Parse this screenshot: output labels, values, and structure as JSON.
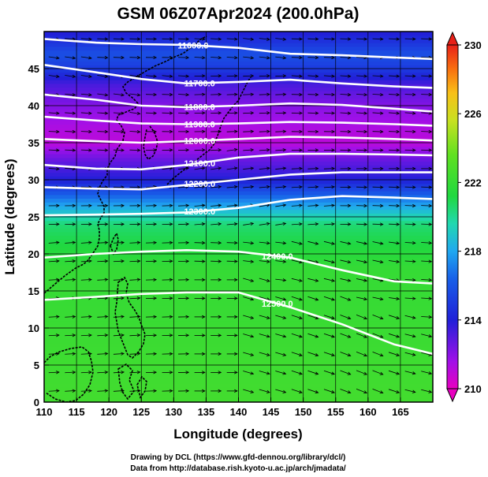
{
  "chart_data": {
    "type": "heatmap",
    "title": "GSM 06Z07Apr2024 (200.0hPa)",
    "xlabel": "Longitude (degrees)",
    "ylabel": "Latitude  (degrees)",
    "xlim": [
      110,
      170
    ],
    "ylim": [
      0,
      50
    ],
    "x_ticks": [
      "110",
      "115",
      "120",
      "125",
      "130",
      "135",
      "140",
      "145",
      "150",
      "155",
      "160",
      "165"
    ],
    "y_ticks": [
      "0",
      "5",
      "10",
      "15",
      "20",
      "25",
      "30",
      "35",
      "40",
      "45"
    ],
    "x_tick_values": [
      110,
      115,
      120,
      125,
      130,
      135,
      140,
      145,
      150,
      155,
      160,
      165
    ],
    "y_tick_values": [
      0,
      5,
      10,
      15,
      20,
      25,
      30,
      35,
      40,
      45
    ],
    "colorbar": {
      "range": [
        210,
        230
      ],
      "tick_values": [
        210,
        214,
        218,
        222,
        226,
        230
      ],
      "tick_labels": [
        "210",
        "214",
        "218",
        "222",
        "226",
        "230"
      ]
    },
    "contours": [
      {
        "label": "11600.0",
        "lon": [
          110,
          118,
          125,
          132,
          140,
          148,
          156,
          164,
          170
        ],
        "lat": [
          49.0,
          48.5,
          48.3,
          48.2,
          47.8,
          47.0,
          46.8,
          46.5,
          46.3
        ]
      },
      {
        "label": "11700.0",
        "lon": [
          110,
          118,
          125,
          132,
          140,
          148,
          156,
          164,
          170
        ],
        "lat": [
          45.5,
          44.5,
          43.6,
          43.0,
          43.2,
          43.5,
          43.0,
          42.6,
          42.4
        ]
      },
      {
        "label": "11800.0",
        "lon": [
          110,
          118,
          125,
          132,
          140,
          148,
          156,
          164,
          170
        ],
        "lat": [
          41.5,
          40.8,
          40.0,
          39.8,
          40.0,
          40.3,
          40.1,
          39.6,
          39.2
        ]
      },
      {
        "label": "11900.0",
        "lon": [
          110,
          118,
          125,
          132,
          140,
          148,
          156,
          164,
          170
        ],
        "lat": [
          38.5,
          38.0,
          37.6,
          37.5,
          37.6,
          37.8,
          37.7,
          37.5,
          37.3
        ]
      },
      {
        "label": "12000.0",
        "lon": [
          110,
          118,
          125,
          132,
          140,
          148,
          156,
          164,
          170
        ],
        "lat": [
          35.5,
          35.2,
          35.0,
          35.2,
          35.5,
          35.8,
          35.7,
          35.5,
          35.3
        ]
      },
      {
        "label": "12100.0",
        "lon": [
          110,
          118,
          125,
          132,
          140,
          148,
          156,
          164,
          170
        ],
        "lat": [
          32.0,
          31.5,
          31.4,
          32.0,
          33.0,
          33.5,
          33.5,
          33.4,
          33.3
        ]
      },
      {
        "label": "12200.0",
        "lon": [
          110,
          118,
          125,
          132,
          140,
          148,
          156,
          164,
          170
        ],
        "lat": [
          29.0,
          28.8,
          28.7,
          29.3,
          30.0,
          30.7,
          31.0,
          31.0,
          31.0
        ]
      },
      {
        "label": "12300.0",
        "lon": [
          110,
          118,
          125,
          132,
          140,
          148,
          156,
          164,
          170
        ],
        "lat": [
          25.2,
          25.3,
          25.4,
          25.6,
          26.2,
          27.3,
          27.8,
          27.6,
          27.4
        ]
      },
      {
        "label": "12400.0",
        "lon": [
          110,
          118,
          125,
          132,
          140,
          148,
          156,
          164,
          170
        ],
        "lat": [
          19.5,
          20.0,
          20.3,
          20.5,
          20.3,
          19.5,
          17.8,
          16.3,
          16.0
        ]
      },
      {
        "label": "12500.0",
        "lon": [
          110,
          118,
          125,
          132,
          140,
          148,
          156,
          164,
          170
        ],
        "lat": [
          13.8,
          14.2,
          14.6,
          14.8,
          14.8,
          12.8,
          10.5,
          7.8,
          6.5
        ]
      }
    ],
    "shading_profile": {
      "lat": [
        0,
        6,
        12,
        18,
        24,
        27,
        30,
        33,
        35,
        37,
        39,
        41,
        43,
        45,
        47,
        50
      ],
      "temperature": [
        222.5,
        222.3,
        222.1,
        222.0,
        220.5,
        217.5,
        214.0,
        212.5,
        211.0,
        211.3,
        211.8,
        212.5,
        213.3,
        215.0,
        215.8,
        213.8
      ]
    }
  },
  "credits": {
    "line1": "Drawing by DCL (https://www.gfd-dennou.org/library/dcl/)",
    "line2": "Data from http://database.rish.kyoto-u.ac.jp/arch/jmadata/"
  }
}
